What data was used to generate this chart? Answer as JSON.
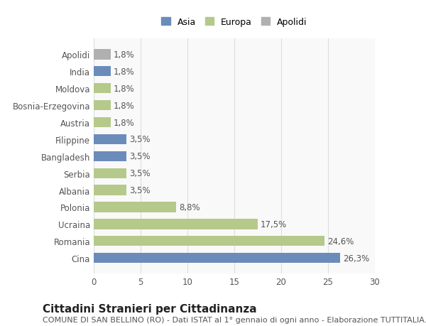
{
  "categories": [
    "Cina",
    "Romania",
    "Ucraina",
    "Polonia",
    "Albania",
    "Serbia",
    "Bangladesh",
    "Filippine",
    "Austria",
    "Bosnia-Erzegovina",
    "Moldova",
    "India",
    "Apolidi"
  ],
  "values": [
    26.3,
    24.6,
    17.5,
    8.8,
    3.5,
    3.5,
    3.5,
    3.5,
    1.8,
    1.8,
    1.8,
    1.8,
    1.8
  ],
  "colors": [
    "#6b8cba",
    "#b5c98a",
    "#b5c98a",
    "#b5c98a",
    "#b5c98a",
    "#b5c98a",
    "#6b8cba",
    "#6b8cba",
    "#b5c98a",
    "#b5c98a",
    "#b5c98a",
    "#6b8cba",
    "#b0b0b0"
  ],
  "labels": [
    "26,3%",
    "24,6%",
    "17,5%",
    "8,8%",
    "3,5%",
    "3,5%",
    "3,5%",
    "3,5%",
    "1,8%",
    "1,8%",
    "1,8%",
    "1,8%",
    "1,8%"
  ],
  "legend": [
    {
      "label": "Asia",
      "color": "#6b8cba"
    },
    {
      "label": "Europa",
      "color": "#b5c98a"
    },
    {
      "label": "Apolidi",
      "color": "#b0b0b0"
    }
  ],
  "xlim": [
    0,
    30
  ],
  "xticks": [
    0,
    5,
    10,
    15,
    20,
    25,
    30
  ],
  "title": "Cittadini Stranieri per Cittadinanza",
  "subtitle": "COMUNE DI SAN BELLINO (RO) - Dati ISTAT al 1° gennaio di ogni anno - Elaborazione TUTTITALIA.IT",
  "bg_color": "#ffffff",
  "plot_bg_color": "#f9f9f9",
  "grid_color": "#dddddd",
  "bar_height": 0.6,
  "label_fontsize": 8.5,
  "tick_fontsize": 8.5,
  "title_fontsize": 11,
  "subtitle_fontsize": 8
}
